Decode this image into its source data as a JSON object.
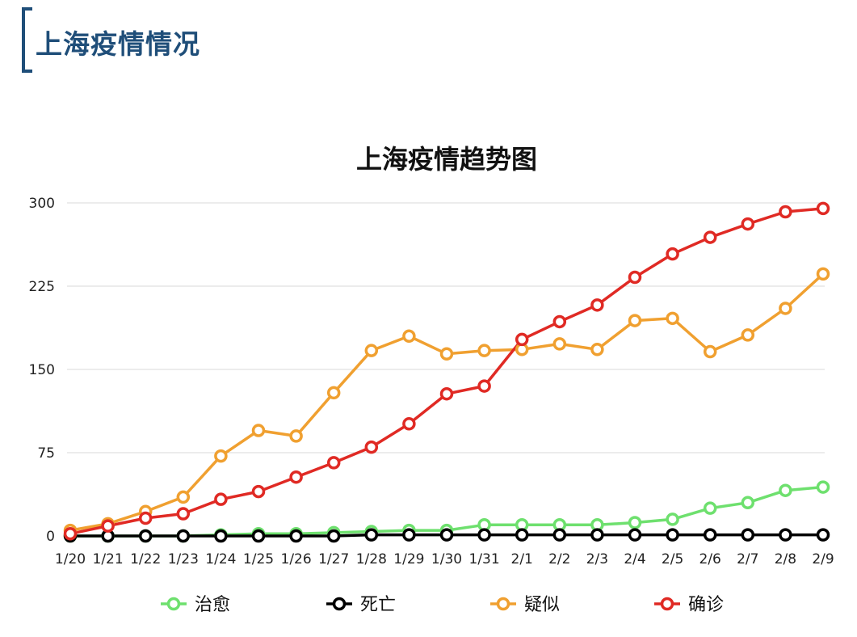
{
  "header": {
    "title": "上海疫情情况"
  },
  "chart_data": {
    "type": "line",
    "title": "上海疫情趋势图",
    "xlabel": "",
    "ylabel": "",
    "categories": [
      "1/20",
      "1/21",
      "1/22",
      "1/23",
      "1/24",
      "1/25",
      "1/26",
      "1/27",
      "1/28",
      "1/29",
      "1/30",
      "1/31",
      "2/1",
      "2/2",
      "2/3",
      "2/4",
      "2/5",
      "2/6",
      "2/7",
      "2/8",
      "2/9"
    ],
    "ylim": [
      0,
      300
    ],
    "yticks": [
      0,
      75,
      150,
      225,
      300
    ],
    "grid": true,
    "legend_position": "bottom",
    "series": [
      {
        "name": "治愈",
        "color": "#6ee06e",
        "values": [
          0,
          0,
          0,
          0,
          1,
          2,
          2,
          3,
          4,
          5,
          5,
          10,
          10,
          10,
          10,
          12,
          15,
          25,
          30,
          41,
          44
        ]
      },
      {
        "name": "死亡",
        "color": "#000000",
        "values": [
          0,
          0,
          0,
          0,
          0,
          0,
          0,
          0,
          1,
          1,
          1,
          1,
          1,
          1,
          1,
          1,
          1,
          1,
          1,
          1,
          1
        ]
      },
      {
        "name": "疑似",
        "color": "#f0a030",
        "values": [
          5,
          11,
          22,
          35,
          72,
          95,
          90,
          129,
          167,
          180,
          164,
          167,
          168,
          173,
          168,
          194,
          196,
          166,
          181,
          205,
          236
        ]
      },
      {
        "name": "确诊",
        "color": "#e02a24",
        "values": [
          2,
          9,
          16,
          20,
          33,
          40,
          53,
          66,
          80,
          101,
          128,
          135,
          177,
          193,
          208,
          233,
          254,
          269,
          281,
          292,
          295
        ]
      }
    ]
  }
}
